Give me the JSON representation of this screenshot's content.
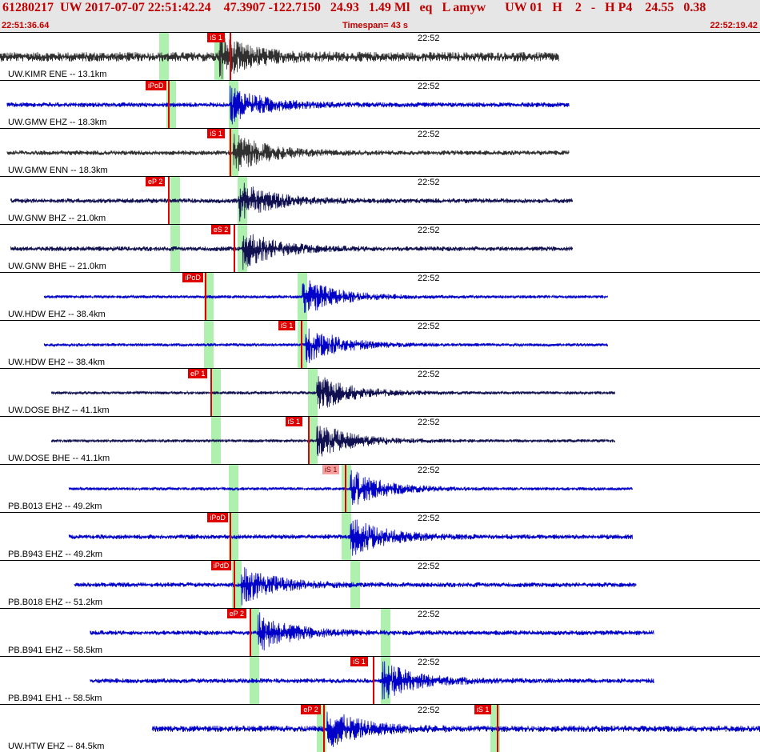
{
  "header": {
    "event_line": "61280217  UW 2017-07-07 22:51:42.24    47.3907 -122.7150   24.93   1.49 Ml   eq   L amyw      UW 01   H    2   -   H P4    24.55   0.38",
    "start_time": "22:51:36.64",
    "timespan": "Timespan=  43 s",
    "end_time": "22:52:19.42"
  },
  "tick_label": "22:52",
  "colors": {
    "header_bg": "#e6e6e6",
    "pick": "#e00000",
    "window": "#aef0ae",
    "trace_blue": "#0000c8",
    "trace_dark": "#303030",
    "trace_navy": "#101050"
  },
  "traces": [
    {
      "label": "UW.KIMR ENE -- 13.1km",
      "color": "#303030",
      "start_s": 0.0,
      "end_s": 31.6,
      "amp": 6,
      "pick": "iS 1",
      "pick_s": 12.1,
      "window_s": 9.3,
      "window2_s": 12.4,
      "burst_s": 12.4
    },
    {
      "label": "UW.GMW EHZ -- 18.3km",
      "color": "#0000c8",
      "start_s": 0.4,
      "end_s": 32.2,
      "amp": 3,
      "pick": "iPoD",
      "pick_s": 8.6,
      "window_s": 9.7,
      "window2_s": 13.2,
      "burst_s": 13.0
    },
    {
      "label": "UW.GMW ENN -- 18.3km",
      "color": "#303030",
      "start_s": 0.4,
      "end_s": 32.2,
      "amp": 3,
      "pick": "iS 1",
      "pick_s": 12.1,
      "window_s": 13.2,
      "window2_s": 13.2,
      "burst_s": 13.2
    },
    {
      "label": "UW.GNW BHZ -- 21.0km",
      "color": "#101050",
      "start_s": 0.6,
      "end_s": 32.4,
      "amp": 3,
      "pick": "eP 2",
      "pick_s": 8.6,
      "window_s": 9.9,
      "window2_s": 13.7,
      "burst_s": 13.5
    },
    {
      "label": "UW.GNW BHE -- 21.0km",
      "color": "#101050",
      "start_s": 0.6,
      "end_s": 32.4,
      "amp": 3,
      "pick": "eS 2",
      "pick_s": 12.3,
      "window_s": 9.9,
      "window2_s": 13.7,
      "burst_s": 13.7
    },
    {
      "label": "UW.HDW EHZ -- 38.4km",
      "color": "#0000c8",
      "start_s": 2.5,
      "end_s": 34.4,
      "amp": 2,
      "pick": "iPoD",
      "pick_s": 10.7,
      "window_s": 11.8,
      "window2_s": 17.1,
      "burst_s": 17.1
    },
    {
      "label": "UW.HDW EH2 -- 38.4km",
      "color": "#0000c8",
      "start_s": 2.5,
      "end_s": 34.4,
      "amp": 2,
      "pick": "iS 1",
      "pick_s": 16.1,
      "window_s": 11.8,
      "window2_s": 17.1,
      "burst_s": 17.3
    },
    {
      "label": "UW.DOSE BHZ -- 41.1km",
      "color": "#101050",
      "start_s": 2.9,
      "end_s": 34.8,
      "amp": 2,
      "pick": "eP 1",
      "pick_s": 11.0,
      "window_s": 12.2,
      "window2_s": 17.7,
      "burst_s": 17.9
    },
    {
      "label": "UW.DOSE BHE -- 41.1km",
      "color": "#101050",
      "start_s": 2.9,
      "end_s": 34.8,
      "amp": 2,
      "pick": "iS 1",
      "pick_s": 16.5,
      "window_s": 12.2,
      "window2_s": 17.7,
      "burst_s": 17.9
    },
    {
      "label": "PB.B013 EH2 -- 49.2km",
      "color": "#0000c8",
      "start_s": 3.9,
      "end_s": 35.8,
      "amp": 2,
      "pick": "iS 1",
      "pick_s": 18.6,
      "window_s": 13.2,
      "window2_s": 19.6,
      "burst_s": 19.8,
      "light": true
    },
    {
      "label": "PB.B943 EHZ -- 49.2km",
      "color": "#0000c8",
      "start_s": 3.9,
      "end_s": 35.8,
      "amp": 3,
      "pick": "iPoD",
      "pick_s": 12.1,
      "window_s": 13.2,
      "window2_s": 19.6,
      "burst_s": 19.8
    },
    {
      "label": "PB.B018 EHZ -- 51.2km",
      "color": "#0000c8",
      "start_s": 4.2,
      "end_s": 36.0,
      "amp": 3,
      "pick": "iPdD",
      "pick_s": 12.3,
      "window_s": 13.4,
      "window2_s": 20.1,
      "burst_s": 13.6
    },
    {
      "label": "PB.B941 EHZ -- 58.5km",
      "color": "#0000c8",
      "start_s": 5.1,
      "end_s": 37.0,
      "amp": 3,
      "pick": "eP 2",
      "pick_s": 13.2,
      "window_s": 14.4,
      "window2_s": 21.8,
      "burst_s": 14.6
    },
    {
      "label": "PB.B941 EH1 -- 58.5km",
      "color": "#0000c8",
      "start_s": 5.1,
      "end_s": 37.0,
      "amp": 3,
      "pick": "iS 1",
      "pick_s": 20.2,
      "window_s": 14.4,
      "window2_s": 21.8,
      "burst_s": 21.6
    },
    {
      "label": "UW.HTW EHZ -- 84.5km",
      "color": "#0000c8",
      "start_s": 8.6,
      "end_s": 43.0,
      "amp": 4,
      "pick": "eP 2",
      "pick_s": 17.4,
      "window_s": 18.2,
      "window2_s": 28.0,
      "burst_s": 18.5,
      "pick2": "iS 1",
      "pick2_s": 27.2
    }
  ]
}
